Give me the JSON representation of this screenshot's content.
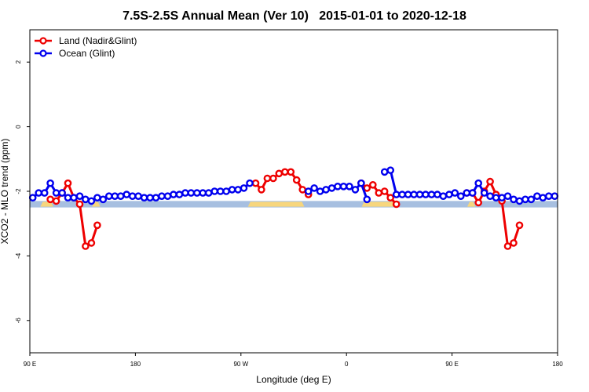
{
  "chart_data": {
    "type": "line",
    "title": "7.5S-2.5S Annual Mean (Ver 10)   2015-01-01 to 2020-12-18",
    "xlabel": "Longitude (deg E)",
    "ylabel": "XCO2 - MLO trend (ppm)",
    "xlim": [
      90,
      540
    ],
    "ylim": [
      -7,
      3
    ],
    "xticks": [
      {
        "value": 90,
        "label": "90 E"
      },
      {
        "value": 180,
        "label": "180"
      },
      {
        "value": 270,
        "label": "90 W"
      },
      {
        "value": 360,
        "label": "0"
      },
      {
        "value": 450,
        "label": "90 E"
      },
      {
        "value": 540,
        "label": "180"
      }
    ],
    "yticks": [
      {
        "value": 2,
        "label": "2"
      },
      {
        "value": 0,
        "label": "0"
      },
      {
        "value": -2,
        "label": "-2"
      },
      {
        "value": -4,
        "label": "-4"
      },
      {
        "value": -6,
        "label": "-6"
      }
    ],
    "legend_position": "top-left",
    "band": {
      "ymin": -2.5,
      "ymax": -2.3,
      "color": "#a7bfe0"
    },
    "land_mask_segments": [
      [
        101,
        108
      ],
      [
        145,
        148
      ],
      [
        278,
        322
      ],
      [
        375,
        402
      ],
      [
        465,
        468
      ]
    ],
    "land_mask_color": "#f7d67d",
    "series": [
      {
        "name": "Land (Nadir&Glint)",
        "color": "#ee0000",
        "segments": [
          [
            [
              107.5,
              -2.25
            ],
            [
              112.5,
              -2.3
            ],
            [
              117.5,
              -2.05
            ],
            [
              122.5,
              -1.75
            ],
            [
              127.5,
              -2.2
            ],
            [
              132.5,
              -2.4
            ],
            [
              137.5,
              -3.7
            ],
            [
              142.5,
              -3.6
            ],
            [
              147.5,
              -3.05
            ]
          ],
          [
            [
              282.5,
              -1.75
            ],
            [
              287.5,
              -1.95
            ],
            [
              292.5,
              -1.6
            ],
            [
              297.5,
              -1.6
            ],
            [
              302.5,
              -1.45
            ],
            [
              307.5,
              -1.4
            ],
            [
              312.5,
              -1.4
            ],
            [
              317.5,
              -1.65
            ],
            [
              322.5,
              -1.95
            ],
            [
              327.5,
              -2.1
            ]
          ],
          [
            [
              372.5,
              -1.75
            ],
            [
              377.5,
              -1.9
            ],
            [
              382.5,
              -1.8
            ],
            [
              387.5,
              -2.05
            ],
            [
              392.5,
              -2.0
            ],
            [
              397.5,
              -2.2
            ],
            [
              402.5,
              -2.4
            ]
          ],
          [
            [
              462.5,
              -2.05
            ],
            [
              467.5,
              -2.05
            ],
            [
              472.5,
              -2.35
            ],
            [
              477.5,
              -2.0
            ],
            [
              482.5,
              -1.7
            ],
            [
              487.5,
              -2.1
            ],
            [
              492.5,
              -2.3
            ],
            [
              497.5,
              -3.7
            ],
            [
              502.5,
              -3.6
            ],
            [
              507.5,
              -3.05
            ]
          ]
        ]
      },
      {
        "name": "Ocean (Glint)",
        "color": "#0000ee",
        "segments": [
          [
            [
              92.5,
              -2.2
            ],
            [
              97.5,
              -2.05
            ],
            [
              102.5,
              -2.05
            ],
            [
              107.5,
              -1.75
            ],
            [
              112.5,
              -2.05
            ],
            [
              117.5,
              -2.05
            ],
            [
              122.5,
              -2.2
            ],
            [
              127.5,
              -2.2
            ],
            [
              132.5,
              -2.15
            ],
            [
              137.5,
              -2.25
            ],
            [
              142.5,
              -2.3
            ],
            [
              147.5,
              -2.2
            ],
            [
              152.5,
              -2.25
            ],
            [
              157.5,
              -2.15
            ],
            [
              162.5,
              -2.15
            ],
            [
              167.5,
              -2.15
            ],
            [
              172.5,
              -2.1
            ],
            [
              177.5,
              -2.15
            ],
            [
              182.5,
              -2.15
            ],
            [
              187.5,
              -2.2
            ],
            [
              192.5,
              -2.2
            ],
            [
              197.5,
              -2.2
            ],
            [
              202.5,
              -2.15
            ],
            [
              207.5,
              -2.15
            ],
            [
              212.5,
              -2.1
            ],
            [
              217.5,
              -2.1
            ],
            [
              222.5,
              -2.05
            ],
            [
              227.5,
              -2.05
            ],
            [
              232.5,
              -2.05
            ],
            [
              237.5,
              -2.05
            ],
            [
              242.5,
              -2.05
            ],
            [
              247.5,
              -2.0
            ],
            [
              252.5,
              -2.0
            ],
            [
              257.5,
              -2.0
            ],
            [
              262.5,
              -1.95
            ],
            [
              267.5,
              -1.95
            ],
            [
              272.5,
              -1.9
            ],
            [
              277.5,
              -1.75
            ]
          ],
          [
            [
              327.5,
              -2.0
            ],
            [
              332.5,
              -1.9
            ],
            [
              337.5,
              -2.0
            ],
            [
              342.5,
              -1.95
            ],
            [
              347.5,
              -1.9
            ],
            [
              352.5,
              -1.85
            ],
            [
              357.5,
              -1.85
            ],
            [
              362.5,
              -1.85
            ],
            [
              367.5,
              -1.95
            ],
            [
              372.5,
              -1.75
            ],
            [
              377.5,
              -2.25
            ]
          ],
          [
            [
              392.5,
              -1.4
            ],
            [
              397.5,
              -1.35
            ],
            [
              402.5,
              -2.1
            ],
            [
              407.5,
              -2.1
            ],
            [
              412.5,
              -2.1
            ],
            [
              417.5,
              -2.1
            ],
            [
              422.5,
              -2.1
            ],
            [
              427.5,
              -2.1
            ],
            [
              432.5,
              -2.1
            ],
            [
              437.5,
              -2.1
            ],
            [
              442.5,
              -2.15
            ],
            [
              447.5,
              -2.1
            ],
            [
              452.5,
              -2.05
            ],
            [
              457.5,
              -2.15
            ],
            [
              462.5,
              -2.05
            ],
            [
              467.5,
              -2.05
            ],
            [
              472.5,
              -1.75
            ],
            [
              477.5,
              -2.05
            ],
            [
              482.5,
              -2.15
            ],
            [
              487.5,
              -2.2
            ],
            [
              492.5,
              -2.2
            ],
            [
              497.5,
              -2.15
            ],
            [
              502.5,
              -2.25
            ],
            [
              507.5,
              -2.3
            ],
            [
              512.5,
              -2.25
            ],
            [
              517.5,
              -2.25
            ],
            [
              522.5,
              -2.15
            ],
            [
              527.5,
              -2.2
            ],
            [
              532.5,
              -2.15
            ],
            [
              537.5,
              -2.15
            ]
          ]
        ]
      }
    ]
  }
}
